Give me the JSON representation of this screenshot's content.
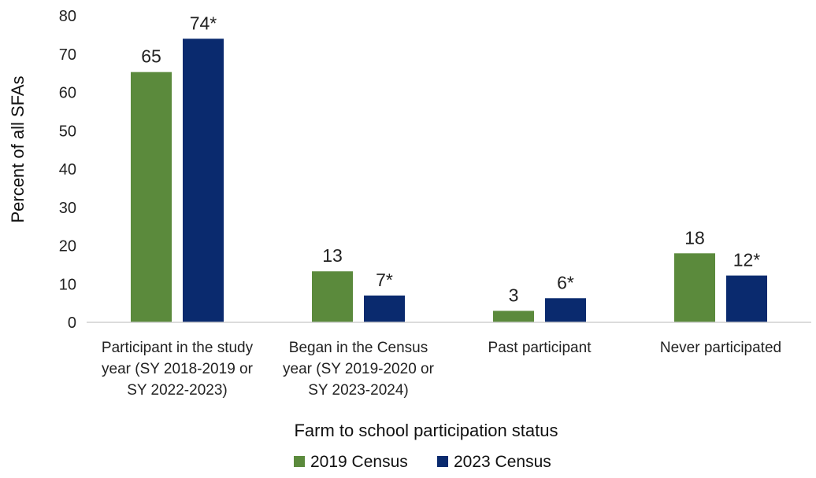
{
  "chart_data": {
    "type": "bar",
    "categories": [
      [
        "Participant in the study",
        "year (SY 2018-2019 or",
        "SY 2022-2023)"
      ],
      [
        "Began in the Census",
        "year (SY 2019-2020 or",
        "SY 2023-2024)"
      ],
      [
        "Past participant"
      ],
      [
        "Never participated"
      ]
    ],
    "series": [
      {
        "name": "2019 Census",
        "color": "#5b8a3c",
        "values": [
          65.3,
          13.3,
          3.0,
          18.0
        ],
        "labels": [
          "65",
          "13",
          "3",
          "18"
        ]
      },
      {
        "name": "2023 Census",
        "color": "#0a2a6e",
        "values": [
          74.0,
          7.0,
          6.3,
          12.2
        ],
        "labels": [
          "74*",
          "7*",
          "6*",
          "12*"
        ]
      }
    ],
    "xlabel": "Farm to school participation status",
    "ylabel": "Percent of all SFAs",
    "ylim": [
      0,
      80
    ],
    "yticks": [
      0,
      10,
      20,
      30,
      40,
      50,
      60,
      70,
      80
    ],
    "grid": false,
    "legend_position": "bottom"
  }
}
